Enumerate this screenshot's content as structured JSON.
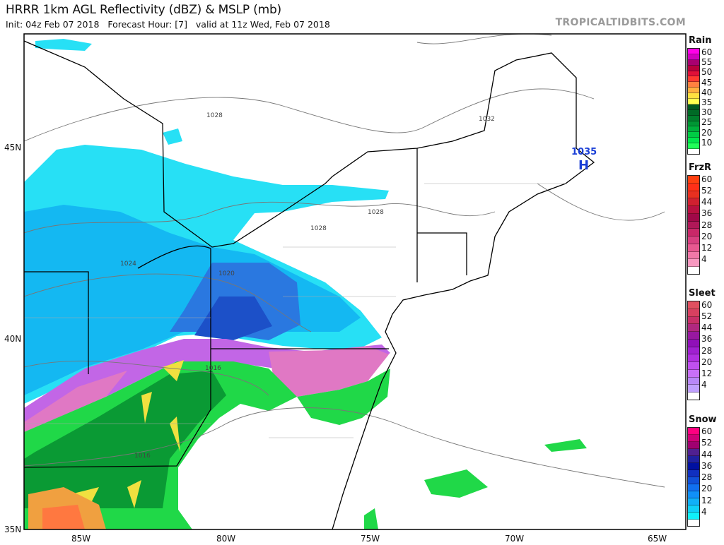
{
  "header": {
    "title": "HRRR 1km AGL Reflectivity (dBZ) & MSLP (mb)",
    "subtitle": "Init: 04z Feb 07 2018   Forecast Hour: [7]   valid at 11z Wed, Feb 07 2018",
    "brand": "TROPICALTIDBITS.COM"
  },
  "map": {
    "lat_labels": [
      "45N",
      "40N",
      "35N"
    ],
    "lon_labels": [
      "85W",
      "80W",
      "75W",
      "70W",
      "65W"
    ],
    "isobar_labels": [
      "1028",
      "1032",
      "1028",
      "1028",
      "1024",
      "1020",
      "1016",
      "1016"
    ],
    "high_center": {
      "pressure": "1035",
      "symbol": "H",
      "color": "#1a3fd6"
    }
  },
  "legends": [
    {
      "name": "Rain",
      "labels": [
        "60",
        "55",
        "50",
        "45",
        "40",
        "35",
        "30",
        "25",
        "20",
        "10"
      ],
      "colors": [
        "#ff00e8",
        "#d000c0",
        "#a80070",
        "#b8003c",
        "#e01038",
        "#ff3a30",
        "#ff8040",
        "#ffb040",
        "#ffe040",
        "#ffff50",
        "#005820",
        "#006a26",
        "#007e2c",
        "#009634",
        "#00b03c",
        "#00cc44",
        "#00e84c",
        "#20ff58",
        "#ffffff"
      ]
    },
    {
      "name": "FrzR",
      "labels": [
        "60",
        "52",
        "44",
        "36",
        "28",
        "20",
        "12",
        "4"
      ],
      "colors": [
        "#ff4010",
        "#ff3018",
        "#e83020",
        "#d02030",
        "#b81040",
        "#a00848",
        "#b01858",
        "#c82868",
        "#d84080",
        "#e85890",
        "#f078a8",
        "#f898c0",
        "#ffffff"
      ]
    },
    {
      "name": "Sleet",
      "labels": [
        "60",
        "52",
        "44",
        "36",
        "28",
        "20",
        "12",
        "4"
      ],
      "colors": [
        "#e05060",
        "#d84060",
        "#c83068",
        "#b02880",
        "#9818a0",
        "#9010b8",
        "#a020d0",
        "#b030e0",
        "#c050f0",
        "#c870f8",
        "#b888f8",
        "#c0a0ff",
        "#ffffff"
      ]
    },
    {
      "name": "Snow",
      "labels": [
        "60",
        "52",
        "44",
        "36",
        "28",
        "20",
        "12",
        "4"
      ],
      "colors": [
        "#ff0080",
        "#d00078",
        "#a00070",
        "#502090",
        "#2020a0",
        "#0010a0",
        "#1030c0",
        "#1050d8",
        "#1070f0",
        "#1090f8",
        "#10b0f8",
        "#10d0f8",
        "#10f0f8",
        "#ffffff"
      ]
    }
  ]
}
